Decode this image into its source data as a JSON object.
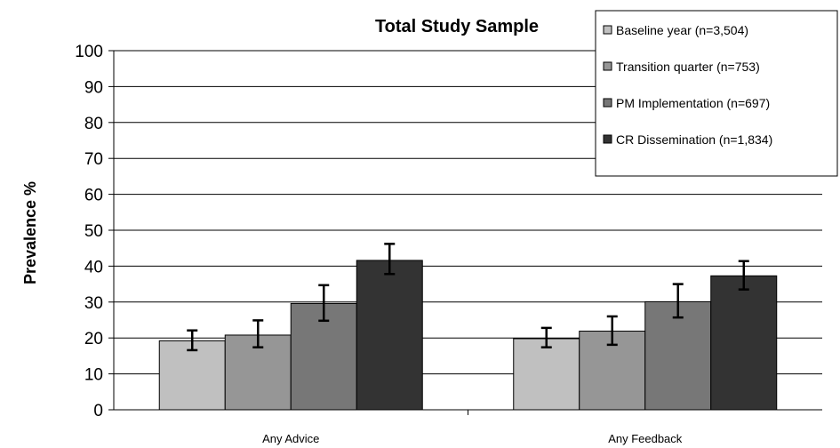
{
  "chart_data": {
    "type": "bar",
    "title": "Total Study Sample",
    "xlabel": "",
    "ylabel": "Prevalence %",
    "ylim": [
      0,
      100
    ],
    "yticks": [
      0,
      10,
      20,
      30,
      40,
      50,
      60,
      70,
      80,
      90,
      100
    ],
    "grid": true,
    "legend_position": "top-right",
    "categories": [
      "Any Advice",
      "Any Feedback"
    ],
    "series": [
      {
        "name": "Baseline year (n=3,504)",
        "color": "#c0c0c0",
        "values": [
          19.2,
          19.8
        ],
        "error": [
          [
            16.6,
            22.1
          ],
          [
            17.4,
            22.8
          ]
        ]
      },
      {
        "name": "Transition quarter (n=753)",
        "color": "#969696",
        "values": [
          20.8,
          21.9
        ],
        "error": [
          [
            17.4,
            24.9
          ],
          [
            18.1,
            26.0
          ]
        ]
      },
      {
        "name": "PM Implementation (n=697)",
        "color": "#777777",
        "values": [
          29.6,
          30.1
        ],
        "error": [
          [
            24.8,
            34.7
          ],
          [
            25.7,
            35.0
          ]
        ]
      },
      {
        "name": "CR Dissemination (n=1,834)",
        "color": "#333333",
        "values": [
          41.6,
          37.3
        ],
        "error": [
          [
            37.8,
            46.2
          ],
          [
            33.5,
            41.4
          ]
        ]
      }
    ]
  }
}
